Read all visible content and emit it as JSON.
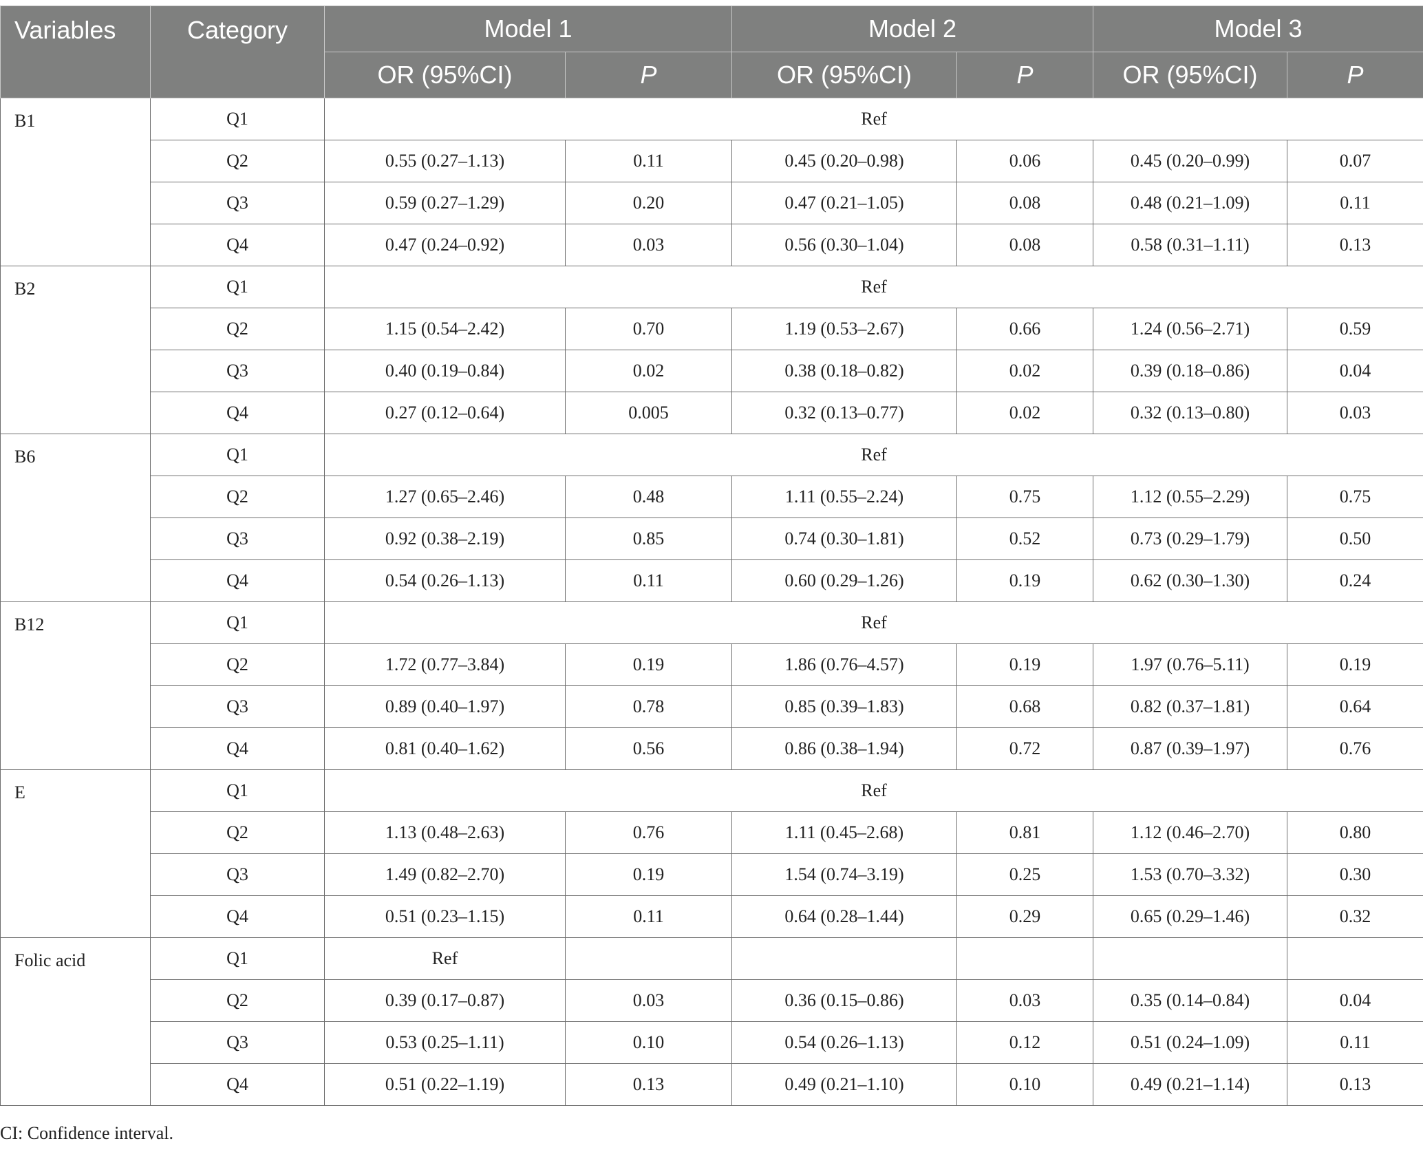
{
  "header": {
    "variables": "Variables",
    "category": "Category",
    "models": [
      "Model 1",
      "Model 2",
      "Model 3"
    ],
    "or_label": "OR (95%CI)",
    "p_label": "P"
  },
  "groups": [
    {
      "variable": "B1",
      "rows": [
        {
          "category": "Q1",
          "ref": "Ref",
          "ref_span": "all"
        },
        {
          "category": "Q2",
          "cells": [
            "0.55 (0.27–1.13)",
            "0.11",
            "0.45 (0.20–0.98)",
            "0.06",
            "0.45 (0.20–0.99)",
            "0.07"
          ]
        },
        {
          "category": "Q3",
          "cells": [
            "0.59 (0.27–1.29)",
            "0.20",
            "0.47 (0.21–1.05)",
            "0.08",
            "0.48 (0.21–1.09)",
            "0.11"
          ]
        },
        {
          "category": "Q4",
          "cells": [
            "0.47 (0.24–0.92)",
            "0.03",
            "0.56 (0.30–1.04)",
            "0.08",
            "0.58 (0.31–1.11)",
            "0.13"
          ]
        }
      ]
    },
    {
      "variable": "B2",
      "rows": [
        {
          "category": "Q1",
          "ref": "Ref",
          "ref_span": "all"
        },
        {
          "category": "Q2",
          "cells": [
            "1.15 (0.54–2.42)",
            "0.70",
            "1.19 (0.53–2.67)",
            "0.66",
            "1.24 (0.56–2.71)",
            "0.59"
          ]
        },
        {
          "category": "Q3",
          "cells": [
            "0.40 (0.19–0.84)",
            "0.02",
            "0.38 (0.18–0.82)",
            "0.02",
            "0.39 (0.18–0.86)",
            "0.04"
          ]
        },
        {
          "category": "Q4",
          "cells": [
            "0.27 (0.12–0.64)",
            "0.005",
            "0.32 (0.13–0.77)",
            "0.02",
            "0.32 (0.13–0.80)",
            "0.03"
          ]
        }
      ]
    },
    {
      "variable": "B6",
      "rows": [
        {
          "category": "Q1",
          "ref": "Ref",
          "ref_span": "all"
        },
        {
          "category": "Q2",
          "cells": [
            "1.27 (0.65–2.46)",
            "0.48",
            "1.11 (0.55–2.24)",
            "0.75",
            "1.12 (0.55–2.29)",
            "0.75"
          ]
        },
        {
          "category": "Q3",
          "cells": [
            "0.92 (0.38–2.19)",
            "0.85",
            "0.74 (0.30–1.81)",
            "0.52",
            "0.73 (0.29–1.79)",
            "0.50"
          ]
        },
        {
          "category": "Q4",
          "cells": [
            "0.54 (0.26–1.13)",
            "0.11",
            "0.60 (0.29–1.26)",
            "0.19",
            "0.62 (0.30–1.30)",
            "0.24"
          ]
        }
      ]
    },
    {
      "variable": "B12",
      "rows": [
        {
          "category": "Q1",
          "ref": "Ref",
          "ref_span": "all"
        },
        {
          "category": "Q2",
          "cells": [
            "1.72 (0.77–3.84)",
            "0.19",
            "1.86 (0.76–4.57)",
            "0.19",
            "1.97 (0.76–5.11)",
            "0.19"
          ]
        },
        {
          "category": "Q3",
          "cells": [
            "0.89 (0.40–1.97)",
            "0.78",
            "0.85 (0.39–1.83)",
            "0.68",
            "0.82 (0.37–1.81)",
            "0.64"
          ]
        },
        {
          "category": "Q4",
          "cells": [
            "0.81 (0.40–1.62)",
            "0.56",
            "0.86 (0.38–1.94)",
            "0.72",
            "0.87 (0.39–1.97)",
            "0.76"
          ]
        }
      ]
    },
    {
      "variable": "E",
      "rows": [
        {
          "category": "Q1",
          "ref": "Ref",
          "ref_span": "all"
        },
        {
          "category": "Q2",
          "cells": [
            "1.13 (0.48–2.63)",
            "0.76",
            "1.11 (0.45–2.68)",
            "0.81",
            "1.12 (0.46–2.70)",
            "0.80"
          ]
        },
        {
          "category": "Q3",
          "cells": [
            "1.49 (0.82–2.70)",
            "0.19",
            "1.54 (0.74–3.19)",
            "0.25",
            "1.53 (0.70–3.32)",
            "0.30"
          ]
        },
        {
          "category": "Q4",
          "cells": [
            "0.51 (0.23–1.15)",
            "0.11",
            "0.64 (0.28–1.44)",
            "0.29",
            "0.65 (0.29–1.46)",
            "0.32"
          ]
        }
      ]
    },
    {
      "variable": "Folic acid",
      "rows": [
        {
          "category": "Q1",
          "cells": [
            "Ref",
            "",
            "",
            "",
            "",
            ""
          ]
        },
        {
          "category": "Q2",
          "cells": [
            "0.39 (0.17–0.87)",
            "0.03",
            "0.36 (0.15–0.86)",
            "0.03",
            "0.35 (0.14–0.84)",
            "0.04"
          ]
        },
        {
          "category": "Q3",
          "cells": [
            "0.53 (0.25–1.11)",
            "0.10",
            "0.54 (0.26–1.13)",
            "0.12",
            "0.51 (0.24–1.09)",
            "0.11"
          ]
        },
        {
          "category": "Q4",
          "cells": [
            "0.51 (0.22–1.19)",
            "0.13",
            "0.49 (0.21–1.10)",
            "0.10",
            "0.49 (0.21–1.14)",
            "0.13"
          ]
        }
      ]
    }
  ],
  "footnote": "CI: Confidence interval."
}
